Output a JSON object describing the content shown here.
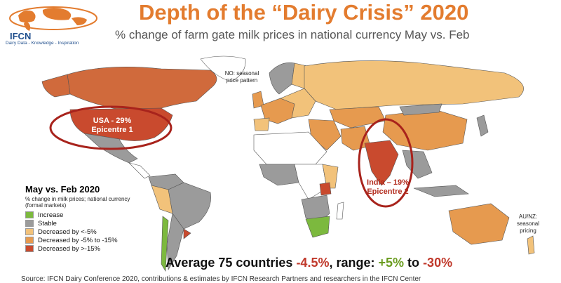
{
  "header": {
    "logo_text": "IFCN",
    "logo_tagline": "Dairy Data - Knowledge - Inspiration",
    "title": "Depth of the “Dairy Crisis” 2020",
    "subtitle": "% change of farm gate milk prices in national currency May vs. Feb"
  },
  "notes": {
    "norway": "NO: seasonal\nprice pattern",
    "aunz": "AU/NZ:\nseasonal\npricing"
  },
  "callouts": {
    "usa_line1": "USA - 29%",
    "usa_line2": "Epicentre 1",
    "india_line1": "India – 19%",
    "india_line2": "Epicentre 2"
  },
  "legend": {
    "title": "May vs. Feb 2020",
    "subtitle": "% change in milk prices; national currency (formal markets)",
    "items": [
      {
        "label": "Increase",
        "color": "#7cb93e"
      },
      {
        "label": "Stable",
        "color": "#9b9b9b"
      },
      {
        "label": "Decreased by <-5%",
        "color": "#f2c27a"
      },
      {
        "label": "Decreased by -5% to -15%",
        "color": "#e69a4f"
      },
      {
        "label": "Decreased by >-15%",
        "color": "#c94a2e"
      }
    ]
  },
  "summary": {
    "prefix": "Average 75 countries",
    "average": "-4.5%",
    "mid": ", range:",
    "range_high": "+5%",
    "to": "to",
    "range_low": "-30%"
  },
  "source": "Source: IFCN Dairy Conference 2020, contributions & estimates by IFCN Research Partners and researchers in the IFCN Center",
  "colors": {
    "title": "#e37c2f",
    "epicentre_circle": "#a8231c",
    "unknown_land": "#ffffff",
    "border": "#555555"
  }
}
